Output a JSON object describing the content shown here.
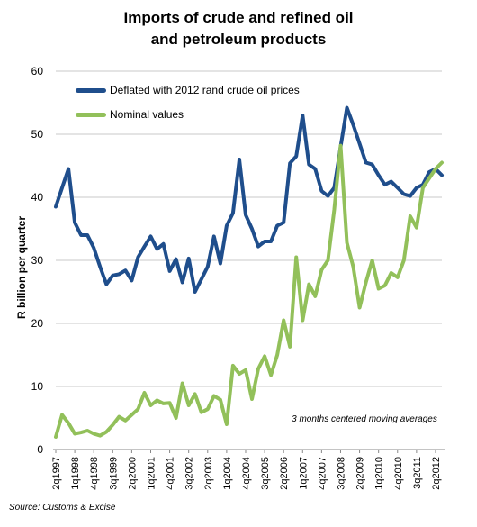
{
  "chart_data": {
    "type": "line",
    "title_line1": "Imports of crude and refined oil",
    "title_line2": "and petroleum products",
    "ylabel": "R billion per quarter",
    "ylim": [
      0,
      60
    ],
    "y_ticks": [
      "0",
      "10",
      "20",
      "30",
      "40",
      "50",
      "60"
    ],
    "x_tick_labels": [
      "2q1997",
      "1q1998",
      "4q1998",
      "3q1999",
      "2q2000",
      "1q2001",
      "4q2001",
      "3q2002",
      "2q2003",
      "1q2004",
      "4q2004",
      "3q2005",
      "2q2006",
      "1q2007",
      "4q2007",
      "3q2008",
      "2q2009",
      "1q2010",
      "4q2010",
      "3q2011",
      "2q2012"
    ],
    "x_tick_step": 3,
    "n_points": 62,
    "grid": "horizontal",
    "legend_position": "top-left",
    "annotation": "3 months centered moving averages",
    "source": "Source: Customs & Excise",
    "series": [
      {
        "name": "Deflated with 2012 rand crude oil prices",
        "color": "#1f4e8c",
        "values": [
          38.5,
          41.5,
          44.5,
          36.0,
          34.0,
          34.0,
          32.0,
          29.0,
          26.2,
          27.6,
          27.8,
          28.4,
          26.8,
          30.5,
          32.2,
          33.8,
          31.8,
          32.6,
          28.3,
          30.2,
          26.5,
          30.3,
          25.0,
          27.0,
          29.0,
          33.8,
          29.5,
          35.5,
          37.5,
          46.0,
          37.2,
          35.0,
          32.2,
          33.0,
          33.0,
          35.5,
          36.0,
          45.4,
          46.5,
          53.0,
          45.2,
          44.5,
          41.0,
          40.2,
          41.5,
          48.0,
          54.2,
          51.5,
          48.5,
          45.5,
          45.2,
          43.5,
          42.0,
          42.5,
          41.5,
          40.5,
          40.2,
          41.5,
          42.0,
          44.0,
          44.5,
          43.5
        ]
      },
      {
        "name": "Nominal values",
        "color": "#92c05a",
        "values": [
          2.0,
          5.5,
          4.2,
          2.5,
          2.7,
          3.0,
          2.5,
          2.2,
          2.8,
          3.9,
          5.2,
          4.6,
          5.5,
          6.4,
          9.0,
          7.0,
          7.8,
          7.3,
          7.4,
          5.0,
          10.5,
          7.0,
          8.8,
          5.9,
          6.4,
          8.5,
          7.9,
          4.0,
          13.3,
          12.0,
          12.6,
          8.0,
          12.8,
          14.8,
          11.8,
          15.0,
          20.5,
          16.3,
          30.5,
          20.5,
          26.2,
          24.3,
          28.5,
          30.0,
          38.0,
          48.2,
          32.8,
          29.0,
          22.5,
          26.5,
          30.0,
          25.5,
          26.0,
          28.0,
          27.3,
          30.0,
          37.0,
          35.2,
          41.5,
          43.0,
          44.5,
          45.5
        ]
      }
    ]
  }
}
